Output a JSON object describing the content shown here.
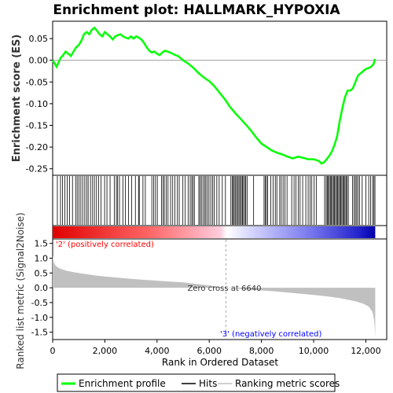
{
  "chart_data": {
    "type": "line",
    "title": "Enrichment plot: HALLMARK_HYPOXIA",
    "xlabel": "Rank in Ordered Dataset",
    "top_panel": {
      "ylabel": "Enrichment score (ES)",
      "ylim": [
        -0.265,
        0.09
      ],
      "yticks": [
        "0.05",
        "0.00",
        "-0.05",
        "-0.10",
        "-0.15",
        "-0.20",
        "-0.25"
      ],
      "ytick_values": [
        0.05,
        0.0,
        -0.05,
        -0.1,
        -0.15,
        -0.2,
        -0.25
      ],
      "series": [
        {
          "name": "Enrichment profile",
          "color": "#00ff00",
          "x": [
            0,
            150,
            300,
            400,
            500,
            600,
            700,
            800,
            900,
            1000,
            1100,
            1200,
            1300,
            1400,
            1500,
            1600,
            1700,
            1800,
            1900,
            2000,
            2100,
            2200,
            2300,
            2400,
            2500,
            2600,
            2700,
            2800,
            2900,
            3000,
            3100,
            3200,
            3300,
            3400,
            3500,
            3600,
            3700,
            3800,
            3900,
            4000,
            4100,
            4200,
            4300,
            4400,
            4500,
            4600,
            4700,
            4800,
            4900,
            5000,
            5200,
            5400,
            5600,
            5800,
            6000,
            6200,
            6400,
            6600,
            6800,
            7000,
            7200,
            7400,
            7600,
            7800,
            8000,
            8100,
            8200,
            8400,
            8600,
            8800,
            9000,
            9200,
            9400,
            9600,
            9800,
            10000,
            10200,
            10300,
            10400,
            10500,
            10600,
            10700,
            10800,
            10900,
            11000,
            11100,
            11200,
            11300,
            11400,
            11500,
            11600,
            11700,
            11800,
            11900,
            12000,
            12100,
            12200,
            12300,
            12350
          ],
          "y": [
            0.0,
            -0.015,
            0.005,
            0.012,
            0.02,
            0.015,
            0.01,
            0.02,
            0.03,
            0.035,
            0.045,
            0.06,
            0.065,
            0.06,
            0.07,
            0.075,
            0.068,
            0.06,
            0.055,
            0.065,
            0.06,
            0.055,
            0.048,
            0.055,
            0.058,
            0.06,
            0.055,
            0.052,
            0.05,
            0.055,
            0.05,
            0.055,
            0.052,
            0.048,
            0.04,
            0.03,
            0.022,
            0.018,
            0.02,
            0.015,
            0.012,
            0.018,
            0.022,
            0.02,
            0.018,
            0.015,
            0.012,
            0.01,
            0.005,
            0.0,
            -0.008,
            -0.018,
            -0.03,
            -0.04,
            -0.048,
            -0.06,
            -0.075,
            -0.09,
            -0.108,
            -0.122,
            -0.135,
            -0.148,
            -0.162,
            -0.178,
            -0.192,
            -0.196,
            -0.2,
            -0.208,
            -0.213,
            -0.217,
            -0.222,
            -0.226,
            -0.222,
            -0.225,
            -0.228,
            -0.228,
            -0.232,
            -0.238,
            -0.235,
            -0.228,
            -0.22,
            -0.21,
            -0.195,
            -0.175,
            -0.14,
            -0.11,
            -0.085,
            -0.07,
            -0.07,
            -0.065,
            -0.05,
            -0.035,
            -0.03,
            -0.025,
            -0.02,
            -0.018,
            -0.015,
            -0.008,
            0.003
          ]
        }
      ]
    },
    "hits": {
      "name": "Hits",
      "x": [
        180,
        300,
        380,
        470,
        560,
        650,
        760,
        880,
        940,
        1010,
        1080,
        1150,
        1230,
        1300,
        1360,
        1450,
        1530,
        1600,
        1680,
        1760,
        1850,
        1990,
        2080,
        2200,
        2360,
        2440,
        2490,
        2560,
        2690,
        2790,
        2910,
        3030,
        3170,
        3290,
        3320,
        3460,
        3550,
        3800,
        3870,
        3940,
        4010,
        4170,
        4230,
        4280,
        4350,
        4420,
        4520,
        4600,
        4680,
        4780,
        4850,
        4990,
        5080,
        5190,
        5270,
        5330,
        5380,
        5430,
        5600,
        5650,
        5700,
        5760,
        5820,
        5870,
        5930,
        5990,
        6060,
        6130,
        6190,
        6290,
        6380,
        6500,
        6620,
        6830,
        6890,
        6920,
        6960,
        7010,
        7050,
        7100,
        7140,
        7190,
        7230,
        7270,
        7310,
        7360,
        7400,
        7450,
        7700,
        8100,
        8150,
        8190,
        8240,
        8360,
        8450,
        8530,
        8590,
        8700,
        8760,
        8830,
        8900,
        8980,
        9160,
        9250,
        9320,
        9410,
        9480,
        9580,
        9700,
        9790,
        9860,
        9930,
        10020,
        10100,
        10420,
        10480,
        10520,
        10560,
        10600,
        10640,
        10680,
        10720,
        10760,
        10800,
        10840,
        10880,
        10920,
        10960,
        11000,
        11040,
        11080,
        11120,
        11160,
        11200,
        11240,
        11280,
        11330,
        11490,
        11550,
        11600,
        11650,
        11700,
        11760,
        11860,
        12000,
        12110,
        12180,
        12260,
        12310,
        12350
      ]
    },
    "ranking_bar": {
      "positive_color": "#ff0000",
      "negative_color": "#0000ff",
      "zero_color": "#ffffff"
    },
    "bottom_panel": {
      "ylabel": "Ranked list metric (Signal2Noise)",
      "ylim": [
        -1.75,
        1.65
      ],
      "yticks": [
        "1.5",
        "1.0",
        "0.5",
        "0.0",
        "-0.5",
        "-1.0",
        "-1.5"
      ],
      "ytick_values": [
        1.5,
        1.0,
        0.5,
        0.0,
        -0.5,
        -1.0,
        -1.5
      ],
      "series": [
        {
          "name": "Ranking metric scores",
          "color": "#c0c0c0",
          "x": [
            0,
            20,
            60,
            120,
            250,
            500,
            800,
            1200,
            1600,
            2000,
            2500,
            3000,
            3500,
            4000,
            4500,
            5000,
            5500,
            6000,
            6400,
            6640,
            7000,
            7500,
            8000,
            8500,
            9000,
            9500,
            10000,
            10500,
            11000,
            11300,
            11600,
            11900,
            12100,
            12250,
            12320,
            12360
          ],
          "y": [
            1.1,
            0.95,
            0.82,
            0.74,
            0.66,
            0.58,
            0.53,
            0.47,
            0.42,
            0.38,
            0.34,
            0.3,
            0.27,
            0.24,
            0.21,
            0.18,
            0.13,
            0.08,
            0.03,
            0.0,
            -0.03,
            -0.06,
            -0.09,
            -0.12,
            -0.16,
            -0.2,
            -0.24,
            -0.29,
            -0.35,
            -0.4,
            -0.46,
            -0.54,
            -0.63,
            -0.8,
            -1.1,
            -1.65
          ]
        }
      ],
      "zero_cross_label": "Zero cross at 6640",
      "positive_label": "'2' (positively correlated)",
      "negative_label": "'3' (negatively correlated)"
    },
    "xlim": [
      0,
      12800
    ],
    "xticks": [
      "0",
      "2,000",
      "4,000",
      "6,000",
      "8,000",
      "10,000",
      "12,000"
    ],
    "xtick_values": [
      0,
      2000,
      4000,
      6000,
      8000,
      10000,
      12000
    ],
    "legend": {
      "placement": "bottom",
      "items": [
        "Enrichment profile",
        "Hits",
        "Ranking metric scores"
      ]
    },
    "colors": {
      "es_line": "#00ff00",
      "hit": "#000000",
      "metric_fill": "#c0c0c0",
      "zero_line": "#aaaaaa",
      "positive_text": "#ff0000",
      "negative_text": "#0000ff"
    }
  }
}
